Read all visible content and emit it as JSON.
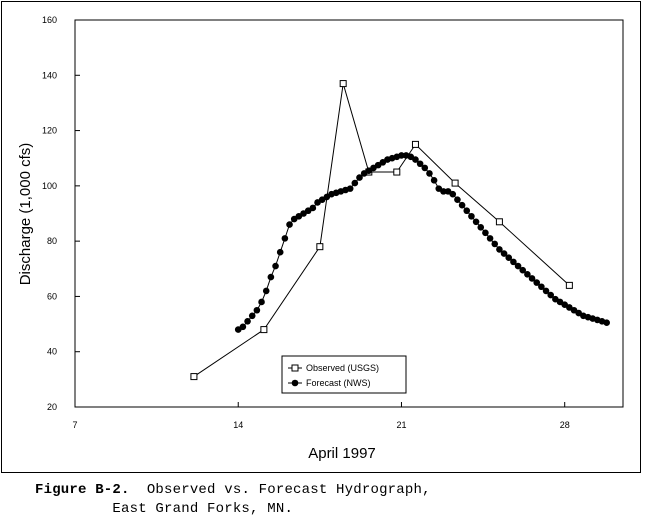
{
  "chart_data": {
    "type": "line",
    "xlabel": "April 1997",
    "ylabel": "Discharge (1,000 cfs)",
    "xlim": [
      7,
      30.5
    ],
    "ylim": [
      20,
      160
    ],
    "xticks": [
      7,
      14,
      21,
      28
    ],
    "yticks": [
      20,
      40,
      60,
      80,
      100,
      120,
      140,
      160
    ],
    "grid": false,
    "legend_position": "bottom-center",
    "series": [
      {
        "name": "Observed (USGS)",
        "marker": "open-square",
        "color": "#000000",
        "x": [
          12.1,
          15.1,
          17.5,
          18.5,
          19.6,
          20.8,
          21.6,
          23.3,
          25.2,
          28.2
        ],
        "y": [
          31,
          48,
          78,
          137,
          105,
          105,
          115,
          101,
          87,
          64
        ]
      },
      {
        "name": "Forecast (NWS)",
        "marker": "filled-circle",
        "color": "#000000",
        "x": [
          14.0,
          14.2,
          14.4,
          14.6,
          14.8,
          15.0,
          15.2,
          15.4,
          15.6,
          15.8,
          16.0,
          16.2,
          16.4,
          16.6,
          16.8,
          17.0,
          17.2,
          17.4,
          17.6,
          17.8,
          18.0,
          18.2,
          18.4,
          18.6,
          18.8,
          19.0,
          19.2,
          19.4,
          19.6,
          19.8,
          20.0,
          20.2,
          20.4,
          20.6,
          20.8,
          21.0,
          21.2,
          21.4,
          21.6,
          21.8,
          22.0,
          22.2,
          22.4,
          22.6,
          22.8,
          23.0,
          23.2,
          23.4,
          23.6,
          23.8,
          24.0,
          24.2,
          24.4,
          24.6,
          24.8,
          25.0,
          25.2,
          25.4,
          25.6,
          25.8,
          26.0,
          26.2,
          26.4,
          26.6,
          26.8,
          27.0,
          27.2,
          27.4,
          27.6,
          27.8,
          28.0,
          28.2,
          28.4,
          28.6,
          28.8,
          29.0,
          29.2,
          29.4,
          29.6,
          29.8
        ],
        "y": [
          48,
          49,
          51,
          53,
          55,
          58,
          62,
          67,
          71,
          76,
          81,
          86,
          88,
          89,
          90,
          91,
          92,
          94,
          95,
          96,
          97,
          97.5,
          98,
          98.5,
          99,
          101,
          103,
          104.5,
          105.5,
          106.5,
          107.5,
          108.5,
          109.5,
          110,
          110.5,
          111,
          111,
          110.5,
          109.5,
          108,
          106.5,
          104.5,
          102,
          99,
          98,
          98,
          97,
          95,
          93,
          91,
          89,
          87,
          85,
          83,
          81,
          79,
          77,
          75.5,
          74,
          72.5,
          71,
          69.5,
          68,
          66.5,
          65,
          63.5,
          62,
          60.5,
          59,
          58,
          57,
          56,
          55,
          54,
          53,
          52.5,
          52,
          51.5,
          51,
          50.5
        ]
      }
    ]
  },
  "caption": {
    "label": "Figure B-2.",
    "line1_text": "  Observed vs. Forecast Hydrograph,",
    "line2_text": "         East Grand Forks, MN."
  }
}
